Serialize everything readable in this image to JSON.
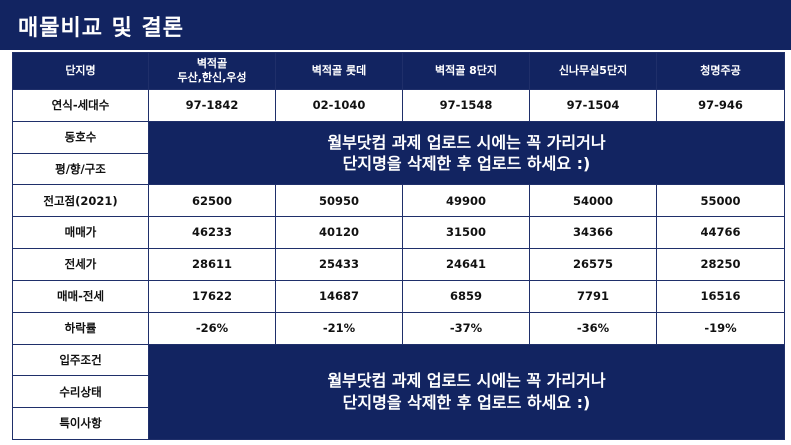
{
  "page": {
    "title": "매물비교 및 결론"
  },
  "table": {
    "header": {
      "label": "단지명",
      "columns": [
        {
          "line1": "벽적골",
          "line2": "두산,한신,우성"
        },
        {
          "line1": "벽적골 롯데",
          "line2": ""
        },
        {
          "line1": "벽적골 8단지",
          "line2": ""
        },
        {
          "line1": "신나무실5단지",
          "line2": ""
        },
        {
          "line1": "청명주공",
          "line2": ""
        }
      ]
    },
    "rows": {
      "year_households": {
        "label": "연식-세대수",
        "values": [
          "97-1842",
          "02-1040",
          "97-1548",
          "97-1504",
          "97-946"
        ]
      },
      "unit_no": {
        "label": "동호수"
      },
      "area_structure": {
        "label": "평/향/구조"
      },
      "peak_2021": {
        "label": "전고점(2021)",
        "values": [
          "62500",
          "50950",
          "49900",
          "54000",
          "55000"
        ]
      },
      "sale_price": {
        "label": "매매가",
        "values": [
          "46233",
          "40120",
          "31500",
          "34366",
          "44766"
        ]
      },
      "jeonse_price": {
        "label": "전세가",
        "values": [
          "28611",
          "25433",
          "24641",
          "26575",
          "28250"
        ]
      },
      "gap": {
        "label": "매매-전세",
        "values": [
          "17622",
          "14687",
          "6859",
          "7791",
          "16516"
        ]
      },
      "decline_rate": {
        "label": "하락률",
        "values": [
          "-26%",
          "-21%",
          "-37%",
          "-36%",
          "-19%"
        ]
      },
      "move_in": {
        "label": "입주조건"
      },
      "repair": {
        "label": "수리상태"
      },
      "notes": {
        "label": "특이사항"
      }
    },
    "notice_top": {
      "line1": "월부닷컴 과제 업로드 시에는 꼭 가리거나",
      "line2": "단지명을 삭제한 후 업로드 하세요 :)"
    },
    "notice_bottom": {
      "line1": "월부닷컴 과제 업로드 시에는 꼭 가리거나",
      "line2": "단지명을 삭제한 후 업로드 하세요 :)"
    }
  },
  "colors": {
    "navy": "#122461",
    "border": "#1f2f6a",
    "text": "#111111"
  }
}
